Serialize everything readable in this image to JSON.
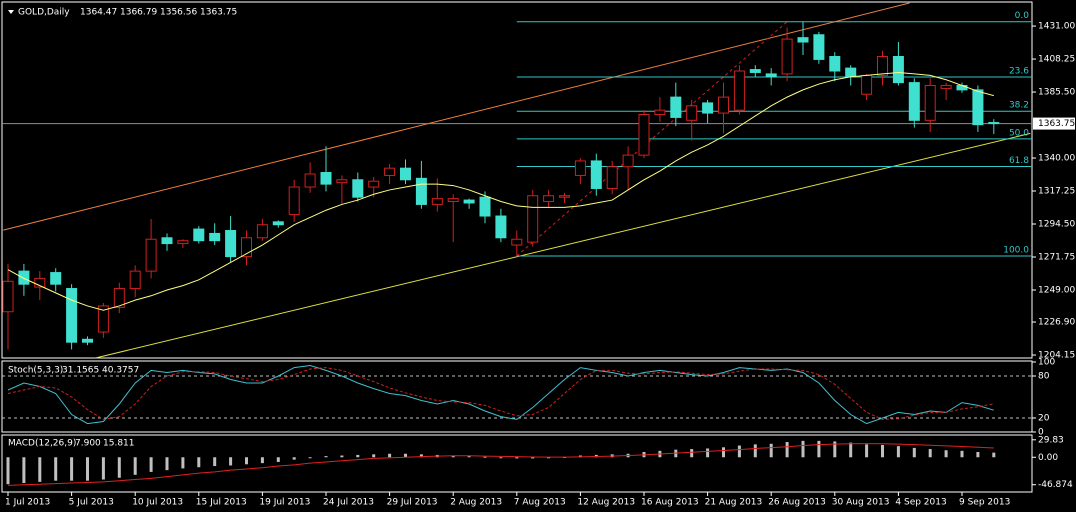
{
  "chart_data": {
    "type": "candlestick",
    "title": "GOLD,Daily",
    "categories": [
      "1 Jul 2013",
      null,
      null,
      null,
      "5 Jul 2013",
      null,
      null,
      null,
      "10 Jul 2013",
      null,
      null,
      null,
      "15 Jul 2013",
      null,
      null,
      null,
      "19 Jul 2013",
      null,
      null,
      null,
      "24 Jul 2013",
      null,
      null,
      null,
      "29 Jul 2013",
      null,
      null,
      null,
      "2 Aug 2013",
      null,
      null,
      null,
      "7 Aug 2013",
      null,
      null,
      null,
      "12 Aug 2013",
      null,
      null,
      null,
      "16 Aug 2013",
      null,
      null,
      null,
      "21 Aug 2013",
      null,
      null,
      null,
      "26 Aug 2013",
      null,
      null,
      null,
      "30 Aug 2013",
      null,
      null,
      null,
      "4 Sep 2013",
      null,
      null,
      null,
      "9 Sep 2013",
      null,
      null
    ],
    "open": [
      1234,
      1262,
      1251,
      1261,
      1250,
      1215,
      1220,
      1237,
      1250,
      1262,
      1285,
      1281,
      1291,
      1288,
      1290,
      1272,
      1285,
      1296,
      1301,
      1320,
      1330,
      1323,
      1325,
      1320,
      1328,
      1333,
      1326,
      1308,
      1310,
      1311,
      1313,
      1300,
      1280,
      1282,
      1310,
      1313,
      1328,
      1338,
      1319,
      1334,
      1342,
      1370,
      1382,
      1366,
      1378,
      1371,
      1373,
      1401,
      1398,
      1398,
      1423,
      1425,
      1410,
      1402,
      1384,
      1397,
      1410,
      1392,
      1366,
      1388,
      1390,
      1387,
      1364.47
    ],
    "high": [
      1267,
      1267,
      1262,
      1264,
      1253,
      1217,
      1240,
      1254,
      1266,
      1298,
      1288,
      1284,
      1293,
      1295,
      1300,
      1290,
      1298,
      1297,
      1325,
      1337,
      1348,
      1328,
      1330,
      1327,
      1336,
      1339,
      1338,
      1326,
      1315,
      1312,
      1317,
      1305,
      1290,
      1318,
      1318,
      1316,
      1340,
      1343,
      1338,
      1348,
      1373,
      1382,
      1392,
      1380,
      1380,
      1392,
      1404,
      1404,
      1402,
      1430,
      1434,
      1427,
      1413,
      1404,
      1398,
      1414,
      1420,
      1395,
      1395,
      1392,
      1392,
      1390,
      1366.79
    ],
    "low": [
      1208,
      1245,
      1242,
      1248,
      1208,
      1211,
      1216,
      1233,
      1244,
      1257,
      1276,
      1278,
      1281,
      1280,
      1268,
      1266,
      1283,
      1292,
      1296,
      1316,
      1317,
      1308,
      1310,
      1313,
      1322,
      1322,
      1305,
      1303,
      1282,
      1305,
      1295,
      1282,
      1272,
      1279,
      1306,
      1309,
      1322,
      1314,
      1315,
      1318,
      1340,
      1365,
      1362,
      1352,
      1364,
      1357,
      1370,
      1396,
      1390,
      1393,
      1411,
      1405,
      1393,
      1390,
      1380,
      1390,
      1390,
      1361,
      1358,
      1380,
      1385,
      1358,
      1356.56
    ],
    "close": [
      1255,
      1253,
      1257,
      1253,
      1213,
      1213,
      1238,
      1250,
      1262,
      1284,
      1281,
      1283,
      1283,
      1283,
      1272,
      1285,
      1294,
      1294,
      1320,
      1329,
      1322,
      1325,
      1313,
      1324,
      1333,
      1325,
      1308,
      1312,
      1312,
      1309,
      1300,
      1285,
      1284,
      1314,
      1314,
      1314,
      1338,
      1319,
      1334,
      1342,
      1370,
      1373,
      1368,
      1376,
      1371,
      1382,
      1400,
      1399,
      1396,
      1422,
      1420,
      1408,
      1400,
      1396,
      1397,
      1410,
      1392,
      1366,
      1390,
      1390,
      1387,
      1363,
      1363.75
    ],
    "up_color": "#d02020",
    "down_color": "#40e0d0",
    "ylim": [
      1202.1,
      1446.9
    ],
    "yticks": [
      {
        "value": 1431,
        "label": "1431.00"
      },
      {
        "value": 1408.25,
        "label": "1408.25"
      },
      {
        "value": 1385.5,
        "label": "1385.50"
      },
      {
        "value": 1340,
        "label": "1340.00"
      },
      {
        "value": 1317.25,
        "label": "1317.25"
      },
      {
        "value": 1294.5,
        "label": "1294.50"
      },
      {
        "value": 1271.75,
        "label": "1271.75"
      },
      {
        "value": 1249,
        "label": "1249.00"
      },
      {
        "value": 1226.9,
        "label": "1226.90"
      },
      {
        "value": 1204.15,
        "label": "1204.15"
      }
    ],
    "ma": {
      "color": "#ffff80",
      "values": [
        1263,
        1257,
        1252,
        1247,
        1242,
        1238,
        1235,
        1238,
        1242,
        1245,
        1249,
        1252,
        1256,
        1262,
        1268,
        1274,
        1280,
        1287,
        1294,
        1299,
        1304,
        1308,
        1311,
        1315,
        1318,
        1320,
        1322,
        1322,
        1321,
        1318,
        1314,
        1310,
        1307,
        1306,
        1306,
        1306,
        1307,
        1309,
        1311,
        1318,
        1325,
        1331,
        1338,
        1344,
        1349,
        1355,
        1362,
        1369,
        1376,
        1382,
        1387,
        1391,
        1394,
        1396,
        1397,
        1398,
        1399,
        1398,
        1397,
        1394,
        1390,
        1386,
        1383
      ]
    },
    "fib": {
      "color": "#30c8c8",
      "high": 1434,
      "low": 1272.4,
      "from_bar": 32,
      "to_bar": 49,
      "anchor_color": "#d02020",
      "levels": [
        {
          "value": 0,
          "label": "0.0"
        },
        23.6,
        38.2,
        {
          "value": 50,
          "label": "50.0"
        },
        61.8,
        {
          "value": 100,
          "label": "100.0"
        }
      ]
    },
    "trendlines": [
      {
        "color": "#f08040",
        "points": [
          [
            -0.3,
            1290.3
          ],
          [
            56.7,
            1446.9
          ]
        ]
      },
      {
        "color": "#e0e040",
        "points": [
          [
            5.5,
            1202.1
          ],
          [
            64.3,
            1357
          ]
        ]
      }
    ],
    "stoch": {
      "title": "Stoch(5,3,3)",
      "ylim": [
        0,
        100
      ],
      "yticks": [
        100,
        80,
        20,
        0
      ],
      "levels": [
        80,
        20
      ],
      "series": [
        {
          "color": "#40c0d0",
          "values": [
            60,
            70,
            65,
            55,
            25,
            12,
            15,
            40,
            70,
            88,
            85,
            88,
            85,
            83,
            75,
            70,
            70,
            80,
            92,
            95,
            88,
            80,
            70,
            62,
            55,
            52,
            45,
            40,
            45,
            40,
            30,
            22,
            18,
            35,
            55,
            75,
            92,
            88,
            85,
            80,
            85,
            88,
            85,
            82,
            80,
            85,
            92,
            90,
            88,
            90,
            85,
            70,
            45,
            25,
            12,
            20,
            28,
            25,
            30,
            28,
            42,
            38,
            31.1565
          ]
        },
        {
          "color": "#d02020",
          "dashed": true,
          "values": [
            55,
            60,
            65,
            63,
            50,
            32,
            18,
            22,
            40,
            65,
            80,
            86,
            86,
            85,
            80,
            76,
            72,
            75,
            82,
            90,
            92,
            88,
            80,
            72,
            63,
            56,
            50,
            45,
            43,
            42,
            38,
            30,
            23,
            25,
            35,
            55,
            75,
            88,
            88,
            84,
            83,
            85,
            86,
            84,
            82,
            83,
            87,
            90,
            90,
            89,
            88,
            82,
            68,
            48,
            28,
            18,
            19,
            24,
            28,
            28,
            33,
            36,
            40.3757
          ]
        }
      ]
    },
    "macd": {
      "title": "MACD(12,26,9)",
      "main_label": "7.900",
      "ylim": [
        -59.3,
        36.3
      ],
      "yticks": [
        29.83,
        {
          "value": 0,
          "label": "0.00"
        },
        -46.874
      ],
      "histogram": {
        "color": "#c0c0c0",
        "values": [
          -46,
          -44,
          -42,
          -40,
          -40,
          -40,
          -38,
          -35,
          -30,
          -25,
          -22,
          -19,
          -17,
          -15,
          -14,
          -12,
          -10,
          -8,
          -4,
          -1,
          2,
          3,
          4,
          5,
          6,
          6,
          5,
          4,
          3,
          2,
          1,
          -1,
          -2,
          -2,
          -1,
          0.5,
          3,
          4,
          5,
          6,
          9,
          11,
          13,
          14,
          15,
          17,
          20,
          22,
          23,
          26,
          28,
          28,
          27,
          25,
          22,
          21,
          19,
          16,
          14,
          12,
          11,
          9,
          7.9
        ]
      },
      "signal": {
        "color": "#e02020",
        "values": [
          -48,
          -47,
          -46,
          -45,
          -44,
          -43,
          -42,
          -40,
          -38,
          -36,
          -33,
          -30,
          -27,
          -25,
          -22,
          -20,
          -18,
          -15,
          -13,
          -10,
          -8,
          -6,
          -4,
          -2,
          -1,
          0,
          1,
          2,
          2.5,
          2.5,
          2,
          1.5,
          1,
          0.5,
          0.3,
          0.2,
          0.6,
          1.2,
          2,
          3,
          4,
          5.5,
          7,
          8.5,
          10,
          11.5,
          13,
          15,
          16.5,
          18,
          20,
          21.5,
          22.5,
          23,
          23.2,
          23,
          22.5,
          21.5,
          20.5,
          19.5,
          18.3,
          17,
          15.811
        ]
      }
    }
  }
}
